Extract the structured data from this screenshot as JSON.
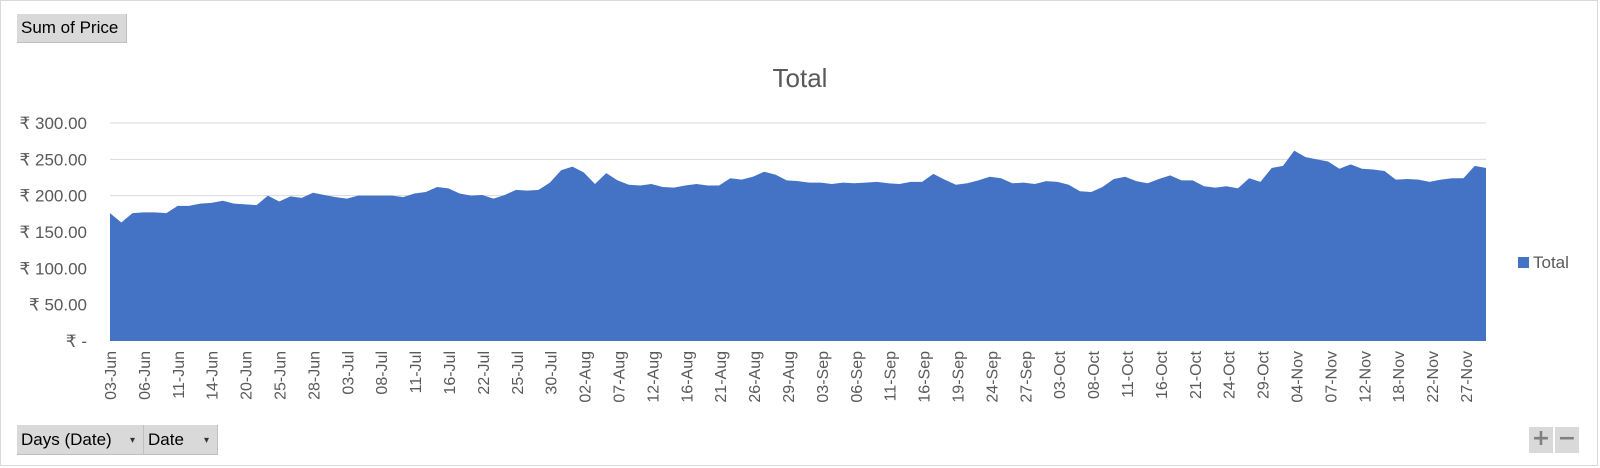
{
  "buttons": {
    "values_field": "Sum of Price",
    "axis_field_1": "Days (Date)",
    "axis_field_2": "Date",
    "zoom_in": "+",
    "zoom_out": "−"
  },
  "colors": {
    "series": "#4472C4",
    "gridline": "#d9d9d9",
    "text": "#595959",
    "field_button": "#d9d9d9"
  },
  "chart_data": {
    "type": "area",
    "title": "Total",
    "xlabel": "",
    "ylabel": "",
    "ylim": [
      0,
      300
    ],
    "yticks": [
      {
        "value": 300,
        "label": "₹ 300.00"
      },
      {
        "value": 250,
        "label": "₹ 250.00"
      },
      {
        "value": 200,
        "label": "₹ 200.00"
      },
      {
        "value": 150,
        "label": "₹ 150.00"
      },
      {
        "value": 100,
        "label": "₹ 100.00"
      },
      {
        "value": 50,
        "label": "₹ 50.00"
      },
      {
        "value": 0,
        "label": "₹ -"
      }
    ],
    "grid": true,
    "legend": "right",
    "x_tick_labels": [
      "03-Jun",
      "06-Jun",
      "11-Jun",
      "14-Jun",
      "20-Jun",
      "25-Jun",
      "28-Jun",
      "03-Jul",
      "08-Jul",
      "11-Jul",
      "16-Jul",
      "22-Jul",
      "25-Jul",
      "30-Jul",
      "02-Aug",
      "07-Aug",
      "12-Aug",
      "16-Aug",
      "21-Aug",
      "26-Aug",
      "29-Aug",
      "03-Sep",
      "06-Sep",
      "11-Sep",
      "16-Sep",
      "19-Sep",
      "24-Sep",
      "27-Sep",
      "03-Oct",
      "08-Oct",
      "11-Oct",
      "16-Oct",
      "21-Oct",
      "24-Oct",
      "29-Oct",
      "04-Nov",
      "07-Nov",
      "12-Nov",
      "18-Nov",
      "22-Nov",
      "27-Nov"
    ],
    "series": [
      {
        "name": "Total",
        "values": [
          176,
          163,
          176,
          177,
          177,
          176,
          186,
          186,
          189,
          190,
          193,
          189,
          188,
          187,
          200,
          192,
          199,
          197,
          204,
          201,
          198,
          196,
          200,
          200,
          200,
          200,
          198,
          203,
          205,
          212,
          210,
          203,
          200,
          201,
          196,
          201,
          208,
          207,
          208,
          218,
          235,
          240,
          232,
          216,
          231,
          221,
          215,
          214,
          216,
          212,
          211,
          214,
          216,
          214,
          214,
          224,
          222,
          226,
          233,
          229,
          221,
          220,
          218,
          218,
          216,
          218,
          217,
          218,
          219,
          217,
          216,
          219,
          219,
          230,
          222,
          215,
          217,
          221,
          226,
          224,
          217,
          218,
          216,
          220,
          219,
          215,
          206,
          205,
          212,
          223,
          226,
          220,
          217,
          223,
          228,
          221,
          221,
          213,
          211,
          213,
          210,
          224,
          219,
          238,
          241,
          262,
          253,
          250,
          247,
          237,
          243,
          237,
          236,
          234,
          222,
          223,
          222,
          219,
          222,
          224,
          224,
          241,
          238
        ]
      }
    ]
  }
}
